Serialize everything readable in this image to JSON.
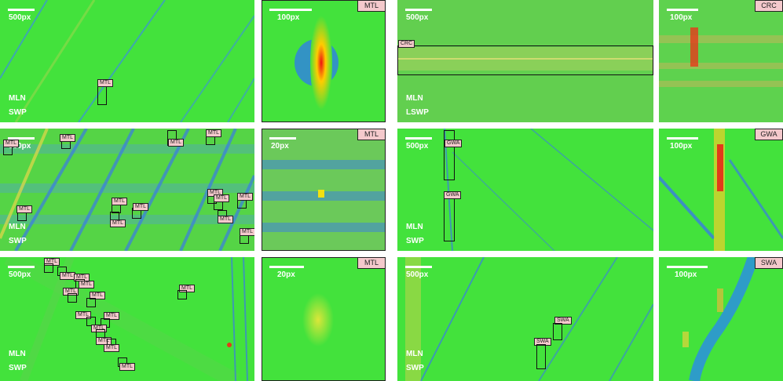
{
  "colors": {
    "background": "#3fe33a",
    "label_fill": "#f4c9cc"
  },
  "panels": [
    {
      "id": "r1c1",
      "scale": "500px",
      "mode": "MLN",
      "type": "SWP"
    },
    {
      "id": "r1c2",
      "scale": "100px",
      "tag": "MTL"
    },
    {
      "id": "r1c3",
      "scale": "500px",
      "mode": "MLN",
      "type": "LSWP",
      "label": "CRC"
    },
    {
      "id": "r1c4",
      "scale": "100px",
      "tag": "CRC"
    },
    {
      "id": "r2c1",
      "scale": "500px",
      "mode": "MLN",
      "type": "SWP"
    },
    {
      "id": "r2c2",
      "scale": "20px",
      "tag": "MTL"
    },
    {
      "id": "r2c3",
      "scale": "500px",
      "mode": "MLN",
      "type": "SWP",
      "label_top": "GWA",
      "label_bottom": "GWA"
    },
    {
      "id": "r2c4",
      "scale": "100px",
      "tag": "GWA"
    },
    {
      "id": "r3c1",
      "scale": "500px",
      "mode": "MLN",
      "type": "SWP"
    },
    {
      "id": "r3c2",
      "scale": "20px",
      "tag": "MTL"
    },
    {
      "id": "r3c3",
      "scale": "500px",
      "mode": "MLN",
      "type": "SWP",
      "label_a": "SWA",
      "label_b": "SWA"
    },
    {
      "id": "r3c4",
      "scale": "100px",
      "tag": "SWA"
    }
  ],
  "mtl_label": "MTL"
}
